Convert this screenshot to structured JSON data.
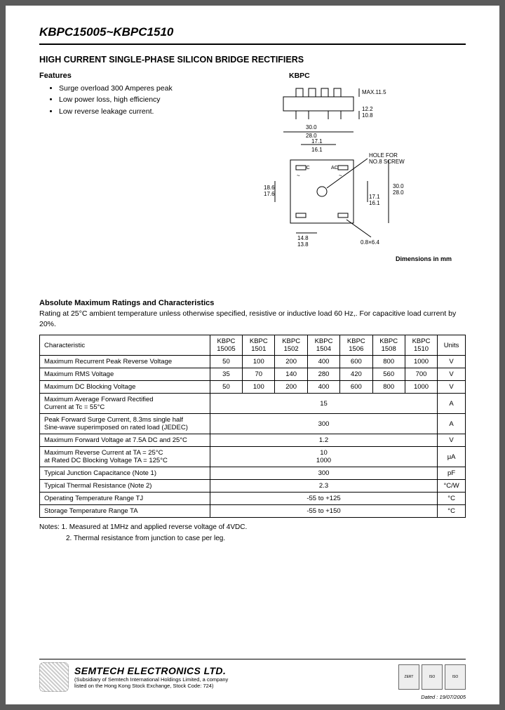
{
  "header": {
    "part_number": "KBPC15005~KBPC1510",
    "title": "HIGH CURRENT SINGLE-PHASE SILICON BRIDGE RECTIFIERS"
  },
  "features": {
    "heading": "Features",
    "items": [
      "Surge overload 300 Amperes peak",
      "Low power loss, high efficiency",
      "Low reverse leakage current."
    ]
  },
  "diagram": {
    "label": "KBPC",
    "max_height": "MAX.11.5",
    "pin_h": "12.2\n10.8",
    "width": "30.0\n28.0",
    "inner_w": "17.1\n16.1",
    "hole_note": "HOLE FOR\nNO.8 SCREW",
    "side_h": "18.6\n17.6",
    "body_w": "30.0\n28.0",
    "body_inner": "17.1\n16.1",
    "pin_w": "14.8\n13.8",
    "pin_size": "0.8×6.4",
    "caption": "Dimensions in mm"
  },
  "ratings": {
    "heading": "Absolute Maximum Ratings and Characteristics",
    "note": "Rating at 25°C ambient temperature unless otherwise specified, resistive or inductive load 60 Hz,. For capacitive load current by 20%.",
    "header_char": "Characteristic",
    "header_units": "Units",
    "parts": [
      "KBPC\n15005",
      "KBPC\n1501",
      "KBPC\n1502",
      "KBPC\n1504",
      "KBPC\n1506",
      "KBPC\n1508",
      "KBPC\n1510"
    ],
    "rows": [
      {
        "char": "Maximum Recurrent Peak Reverse Voltage",
        "vals": [
          "50",
          "100",
          "200",
          "400",
          "600",
          "800",
          "1000"
        ],
        "unit": "V"
      },
      {
        "char": "Maximum RMS Voltage",
        "vals": [
          "35",
          "70",
          "140",
          "280",
          "420",
          "560",
          "700"
        ],
        "unit": "V"
      },
      {
        "char": "Maximum DC Blocking Voltage",
        "vals": [
          "50",
          "100",
          "200",
          "400",
          "600",
          "800",
          "1000"
        ],
        "unit": "V"
      }
    ],
    "span_rows": [
      {
        "char": "Maximum Average Forward Rectified\nCurrent at Tc = 55°C",
        "val": "15",
        "unit": "A"
      },
      {
        "char": "Peak Forward Surge Current, 8.3ms single half\nSine-wave superimposed on rated load (JEDEC)",
        "val": "300",
        "unit": "A"
      },
      {
        "char": "Maximum Forward Voltage at 7.5A DC and 25°C",
        "val": "1.2",
        "unit": "V"
      },
      {
        "char": "Maximum Reverse Current at TA = 25°C\nat Rated DC Blocking Voltage TA = 125°C",
        "val": "10\n1000",
        "unit": "μA"
      },
      {
        "char": "Typical Junction Capacitance (Note 1)",
        "val": "300",
        "unit": "pF"
      },
      {
        "char": "Typical Thermal Resistance (Note 2)",
        "val": "2.3",
        "unit": "°C/W"
      },
      {
        "char": "Operating Temperature Range TJ",
        "val": "-55 to +125",
        "unit": "°C"
      },
      {
        "char": "Storage Temperature Range TA",
        "val": "-55 to +150",
        "unit": "°C"
      }
    ]
  },
  "notes": {
    "line1": "Notes: 1. Measured at 1MHz and applied reverse voltage of 4VDC.",
    "line2": "2. Thermal resistance from junction to case per leg."
  },
  "footer": {
    "company": "SEMTECH ELECTRONICS LTD.",
    "sub1": "(Subsidiary of Semtech International Holdings Limited, a company",
    "sub2": "listed on the Hong Kong Stock Exchange, Stock Code: 724)",
    "date": "Dated : 19/07/2005"
  }
}
